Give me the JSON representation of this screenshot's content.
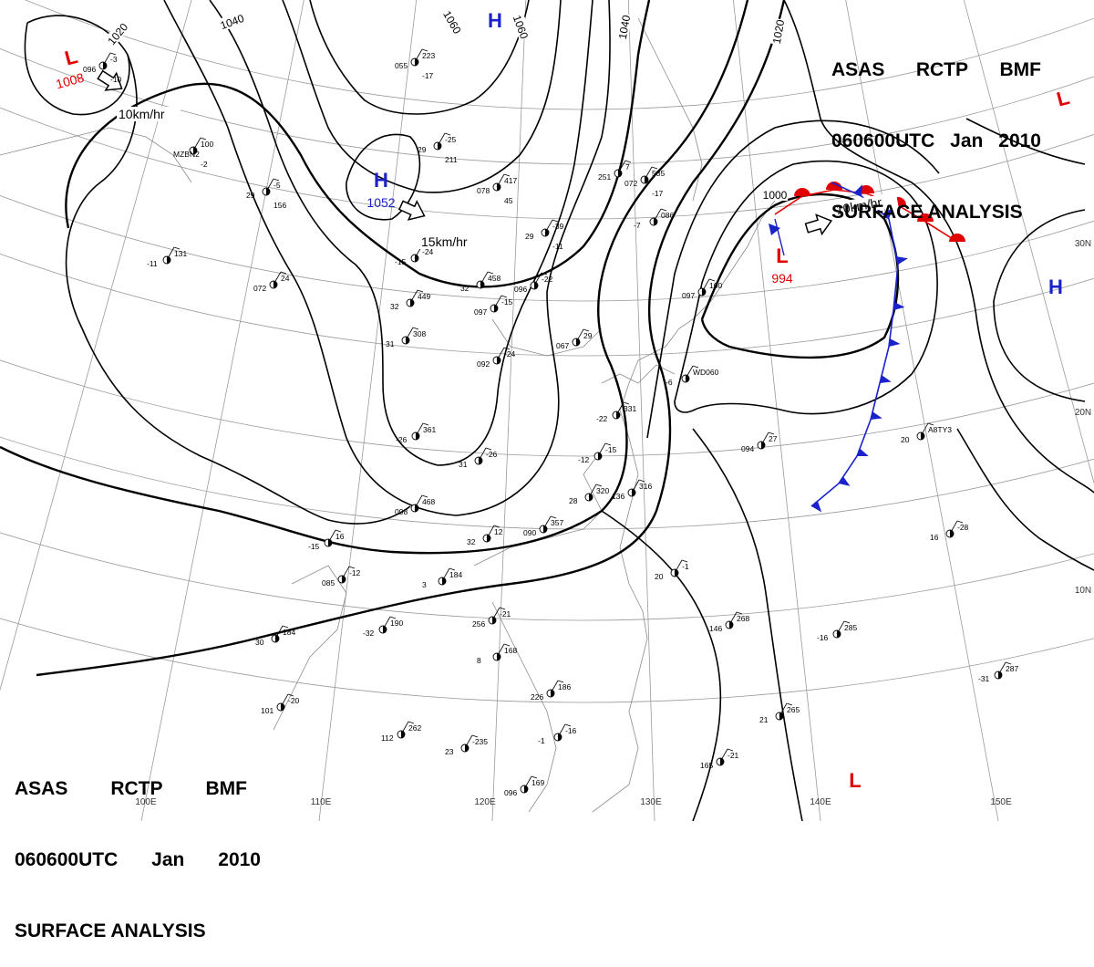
{
  "header": {
    "line1": [
      "ASAS",
      "RCTP",
      "BMF"
    ],
    "line2": [
      "060600UTC",
      "Jan",
      "2010"
    ],
    "line3": "SURFACE ANALYSIS"
  },
  "pressure_centers": [
    {
      "type": "L",
      "value": "1008",
      "color": "#e00000"
    },
    {
      "type": "H",
      "value": "",
      "color": "#1a22cc"
    },
    {
      "type": "H",
      "value": "1052",
      "color": "#1a22cc"
    },
    {
      "type": "L",
      "value": "994",
      "color": "#e00000"
    },
    {
      "type": "H",
      "value": "",
      "color": "#1a22cc"
    },
    {
      "type": "L",
      "value": "",
      "color": "#e00000"
    },
    {
      "type": "L",
      "value": "",
      "color": "#e00000"
    }
  ],
  "isobar_labels": [
    "1020",
    "1040",
    "1060",
    "1060",
    "1040",
    "1020",
    "1000"
  ],
  "motion_labels": [
    "10km/hr",
    "15km/hr",
    "10km/hr"
  ],
  "longitude_labels": [
    "100E",
    "110E",
    "120E",
    "130E",
    "140E",
    "150E"
  ],
  "latitude_labels": [
    "30N",
    "20N",
    "10N"
  ],
  "fronts": {
    "warm_color": "#e00000",
    "cold_color": "#1a22cc"
  },
  "station_labels": [
    "-3",
    "100",
    "-5",
    "223",
    "-25",
    "417",
    "-39",
    "535",
    "-24",
    "458",
    "-22",
    "449",
    "-15",
    "308",
    "-24",
    "361",
    "-26",
    "468",
    "12",
    "357",
    "-15",
    "320",
    "316",
    "331",
    "-1",
    "268",
    "285",
    "-28",
    "287",
    "265",
    "-21",
    "184",
    "-20",
    "262",
    "-235",
    "169",
    "190",
    "-12",
    "16",
    "184",
    "-21",
    "168",
    "186",
    "-16",
    "24",
    "131",
    "A8TY3",
    "27",
    "100",
    "WD060",
    "29",
    "086",
    "7",
    "096",
    "MZBN2",
    "29",
    "055",
    "29",
    "078",
    "29",
    "072",
    "-15",
    "32",
    "096",
    "32",
    "097",
    "31",
    "092",
    "-26",
    "31",
    "098",
    "32",
    "090",
    "-12",
    "28",
    "136",
    "-22",
    "20",
    "146",
    "-16",
    "16",
    "-31",
    "21",
    "165",
    "30",
    "101",
    "112",
    "23",
    "096",
    "-32",
    "085",
    "-15",
    "3",
    "256",
    "8",
    "226",
    "-1",
    "072",
    "-11",
    "20",
    "094",
    "097",
    "-6",
    "067",
    "-7",
    "251",
    "-10",
    "-2",
    "156",
    "-17",
    "211",
    "45",
    "-11",
    "-17"
  ]
}
